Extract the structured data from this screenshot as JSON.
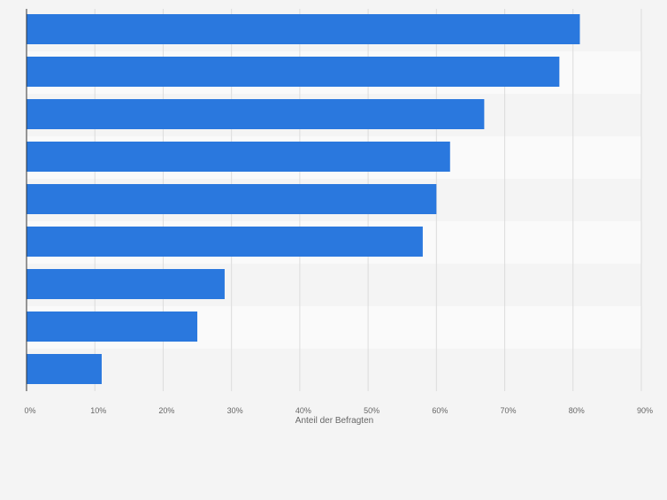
{
  "chart_data": {
    "type": "bar",
    "orientation": "horizontal",
    "categories": [
      "",
      "",
      "",
      "",
      "",
      "",
      "",
      "",
      ""
    ],
    "values": [
      81,
      78,
      67,
      62,
      60,
      58,
      29,
      25,
      11
    ],
    "xlabel": "Anteil der Befragten",
    "xlim": [
      0,
      90
    ],
    "xticks": [
      0,
      10,
      20,
      30,
      40,
      50,
      60,
      70,
      80,
      90
    ],
    "tick_labels": [
      "0%",
      "10%",
      "20%",
      "30%",
      "40%",
      "50%",
      "60%",
      "70%",
      "80%",
      "90%"
    ],
    "grid": true,
    "bar_color": "#2a78de",
    "band_colors": [
      "#f4f4f4",
      "#fafafa"
    ],
    "grid_color": "#dcdcdc",
    "axis_color": "#333333",
    "tick_label_color": "#666666"
  }
}
